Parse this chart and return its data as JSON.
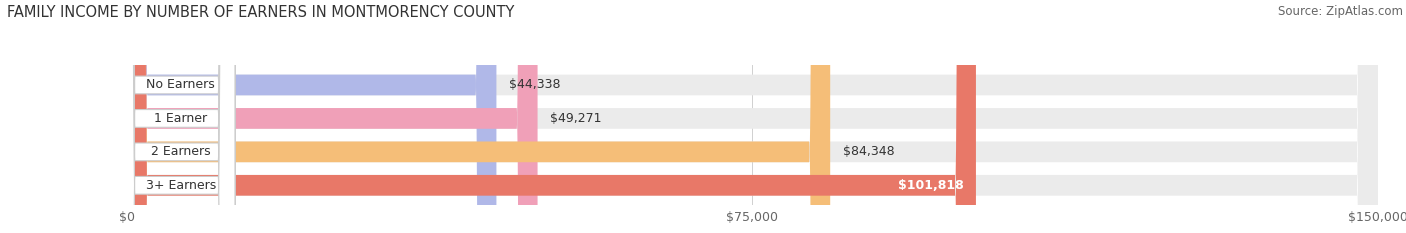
{
  "title": "FAMILY INCOME BY NUMBER OF EARNERS IN MONTMORENCY COUNTY",
  "source": "Source: ZipAtlas.com",
  "categories": [
    "No Earners",
    "1 Earner",
    "2 Earners",
    "3+ Earners"
  ],
  "values": [
    44338,
    49271,
    84348,
    101818
  ],
  "bar_colors": [
    "#b0b8e8",
    "#f0a0b8",
    "#f5be78",
    "#e87868"
  ],
  "label_colors": [
    "#333333",
    "#333333",
    "#333333",
    "#ffffff"
  ],
  "value_labels": [
    "$44,338",
    "$49,271",
    "$84,348",
    "$101,818"
  ],
  "xlim": [
    0,
    150000
  ],
  "xtick_values": [
    0,
    75000,
    150000
  ],
  "xtick_labels": [
    "$0",
    "$75,000",
    "$150,000"
  ],
  "bg_color": "#ffffff",
  "bar_bg_color": "#ebebeb",
  "title_fontsize": 10.5,
  "source_fontsize": 8.5,
  "label_fontsize": 9,
  "value_fontsize": 9,
  "tick_fontsize": 9
}
